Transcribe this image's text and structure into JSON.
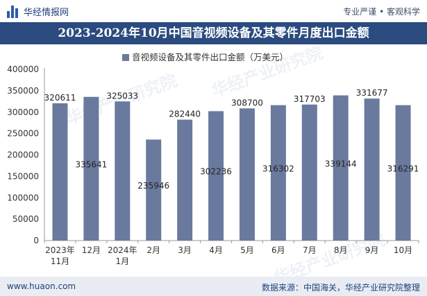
{
  "header": {
    "brand": "华经情报网",
    "slogan": "专业严谨 • 客观科学"
  },
  "title": "2023-2024年10月中国音视频设备及其零件月度出口金额",
  "footer": {
    "site": "www.huaon.com",
    "source": "数据来源：中国海关，华经产业研究院整理"
  },
  "colors": {
    "bar": "#6a7a9e",
    "title_bg": "#2b4b7f",
    "footer_bg": "#e9edf3"
  },
  "chart_data": {
    "type": "bar",
    "categories": [
      [
        "2023年",
        "11月"
      ],
      [
        "12月"
      ],
      [
        "2024年",
        "1月"
      ],
      [
        "2月"
      ],
      [
        "3月"
      ],
      [
        "4月"
      ],
      [
        "5月"
      ],
      [
        "6月"
      ],
      [
        "7月"
      ],
      [
        "8月"
      ],
      [
        "9月"
      ],
      [
        "10月"
      ]
    ],
    "series": [
      {
        "name": "音视频设备及其零件出口金额（万美元）",
        "values": [
          320611,
          335641,
          325033,
          235946,
          282440,
          302236,
          308700,
          316302,
          317703,
          339144,
          331677,
          316291
        ]
      }
    ],
    "label_position": [
      "top",
      "inside",
      "top",
      "inside",
      "top",
      "inside",
      "top",
      "inside",
      "top",
      "inside",
      "top",
      "inside"
    ],
    "ylim": [
      0,
      400000
    ],
    "yticks": [
      0,
      50000,
      100000,
      150000,
      200000,
      250000,
      300000,
      350000,
      400000
    ],
    "legend_position": "top-center",
    "grid": false
  }
}
